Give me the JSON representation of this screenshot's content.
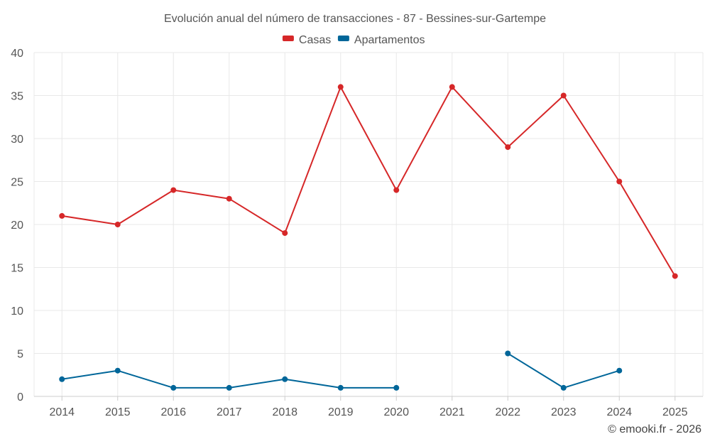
{
  "chart_data": {
    "type": "line",
    "title": "Evolución anual del número de transacciones - 87 - Bessines-sur-Gartempe",
    "categories": [
      "2014",
      "2015",
      "2016",
      "2017",
      "2018",
      "2019",
      "2020",
      "2021",
      "2022",
      "2023",
      "2024",
      "2025"
    ],
    "series": [
      {
        "name": "Casas",
        "color": "#d62728",
        "values": [
          21,
          20,
          24,
          23,
          19,
          36,
          24,
          36,
          29,
          35,
          25,
          14
        ]
      },
      {
        "name": "Apartamentos",
        "color": "#006699",
        "values": [
          2,
          3,
          1,
          1,
          2,
          1,
          1,
          null,
          5,
          1,
          3,
          null
        ]
      }
    ],
    "xlabel": "",
    "ylabel": "",
    "ylim": [
      0,
      40
    ],
    "yticks": [
      "0",
      "5",
      "10",
      "15",
      "20",
      "25",
      "30",
      "35",
      "40"
    ],
    "grid": true,
    "legend_position": "top-center"
  },
  "credit": "© emooki.fr - 2026"
}
